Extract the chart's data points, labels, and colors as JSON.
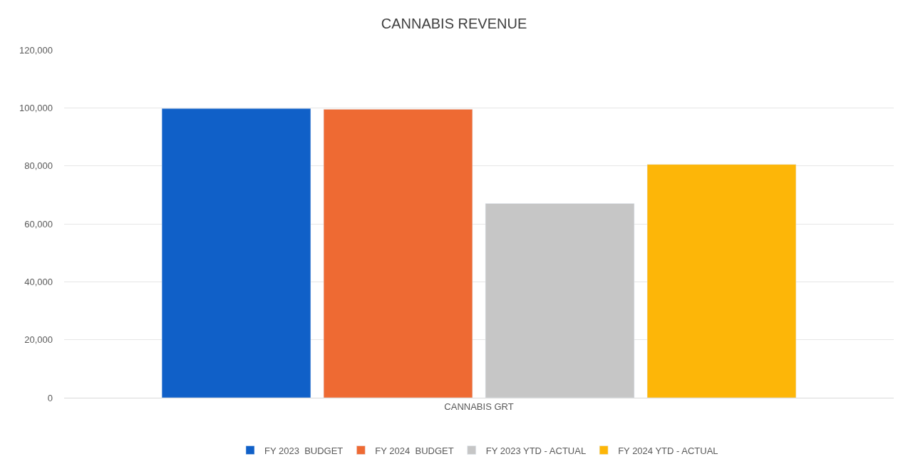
{
  "chart_data": {
    "type": "bar",
    "title": "CANNABIS REVENUE",
    "categories": [
      "CANNABIS GRT"
    ],
    "series": [
      {
        "name": "FY 2023  BUDGET",
        "color": "#1060c8",
        "values": [
          99800
        ]
      },
      {
        "name": "FY 2024  BUDGET",
        "color": "#ee6a33",
        "values": [
          99500
        ]
      },
      {
        "name": "FY 2023 YTD - ACTUAL",
        "color": "#c6c6c6",
        "values": [
          67000
        ]
      },
      {
        "name": "FY 2024 YTD - ACTUAL",
        "color": "#fdb608",
        "values": [
          80500
        ]
      }
    ],
    "ylim": [
      0,
      120000
    ],
    "yticks": [
      {
        "value": 0,
        "label": "0"
      },
      {
        "value": 20000,
        "label": "20,000"
      },
      {
        "value": 40000,
        "label": "40,000"
      },
      {
        "value": 60000,
        "label": "60,000"
      },
      {
        "value": 80000,
        "label": "80,000"
      },
      {
        "value": 100000,
        "label": "100,000"
      },
      {
        "value": 120000,
        "label": "120,000"
      }
    ],
    "grid": "y",
    "legend": "bottom"
  }
}
